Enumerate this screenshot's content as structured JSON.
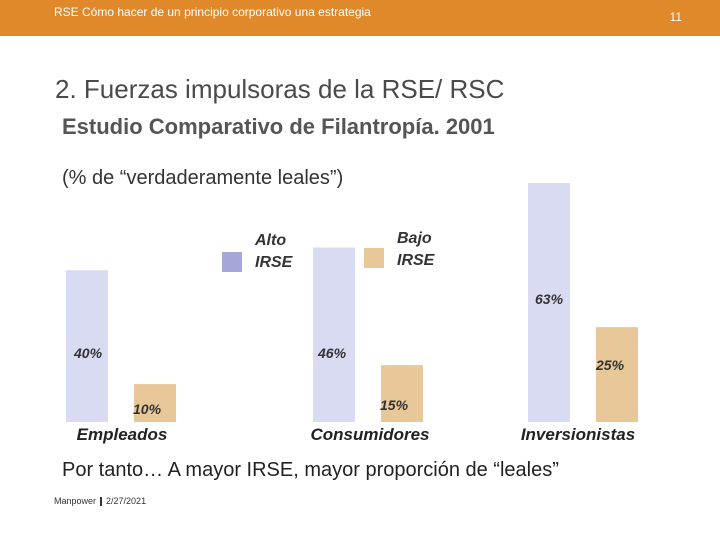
{
  "header": {
    "title": "RSE Cómo hacer de un principio corporativo una estrategia",
    "page_number": "11",
    "bar_color": "#E0892B"
  },
  "heading": "2. Fuerzas impulsoras de la RSE/ RSC",
  "subheading": "Estudio Comparativo de Filantropía. 2001",
  "note": "(% de “verdaderamente leales”)",
  "conclusion": "Por tanto… A mayor IRSE, mayor proporción de “leales”",
  "footer": {
    "brand": "Manpower",
    "date": "2/27/2021"
  },
  "chart_data": {
    "type": "bar",
    "categories": [
      "Empleados",
      "Consumidores",
      "Inversionistas"
    ],
    "series": [
      {
        "name": "Alto IRSE",
        "values": [
          40,
          46,
          63
        ],
        "labels": [
          "40%",
          "46%",
          "63%"
        ],
        "color": "#D9DBF3",
        "legend_color": "#A6A6D8"
      },
      {
        "name": "Bajo IRSE",
        "values": [
          10,
          15,
          25
        ],
        "labels": [
          "10%",
          "15%",
          "25%"
        ],
        "color": "#E8C898",
        "legend_color": "#E8C898"
      }
    ],
    "legend": [
      "Alto\nIRSE",
      "Bajo\nIRSE"
    ],
    "ylim": [
      0,
      63
    ]
  }
}
